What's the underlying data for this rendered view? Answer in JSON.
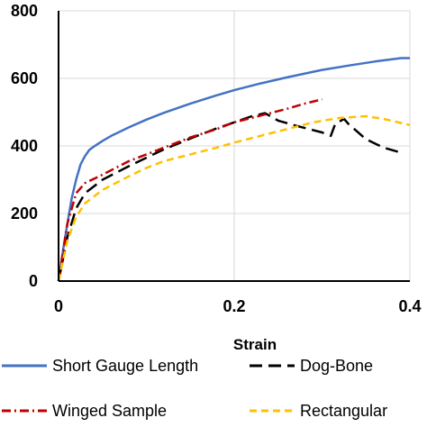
{
  "chart_data": {
    "type": "line",
    "title": "",
    "xlabel": "Strain",
    "ylabel": "",
    "xlim": [
      0,
      0.4
    ],
    "ylim": [
      0,
      800
    ],
    "x_ticks": [
      "0",
      "0.2",
      "0.4"
    ],
    "y_ticks": [
      "0",
      "200",
      "400",
      "600",
      "800"
    ],
    "grid": true,
    "legend_position": "bottom",
    "series": [
      {
        "name": "Short Gauge Length",
        "color": "#4472c4",
        "dash": "solid",
        "x": [
          0,
          0.005,
          0.01,
          0.015,
          0.02,
          0.025,
          0.03,
          0.035,
          0.04,
          0.05,
          0.06,
          0.08,
          0.1,
          0.12,
          0.15,
          0.18,
          0.2,
          0.23,
          0.26,
          0.3,
          0.33,
          0.36,
          0.39,
          0.4
        ],
        "y": [
          0,
          90,
          170,
          245,
          300,
          345,
          370,
          388,
          398,
          415,
          430,
          455,
          478,
          498,
          525,
          550,
          565,
          585,
          603,
          625,
          638,
          650,
          660,
          660
        ]
      },
      {
        "name": "Dog-Bone",
        "color": "#000000",
        "dash": "long-dash",
        "x": [
          0,
          0.01,
          0.02,
          0.03,
          0.05,
          0.08,
          0.1,
          0.12,
          0.15,
          0.18,
          0.2,
          0.22,
          0.235,
          0.25,
          0.27,
          0.3,
          0.31,
          0.315,
          0.325,
          0.33,
          0.35,
          0.37,
          0.39
        ],
        "y": [
          0,
          130,
          215,
          260,
          300,
          340,
          365,
          390,
          422,
          452,
          470,
          488,
          497,
          475,
          460,
          440,
          430,
          465,
          480,
          465,
          420,
          395,
          380
        ]
      },
      {
        "name": "Winged Sample",
        "color": "#c00000",
        "dash": "dash-dot",
        "x": [
          0,
          0.01,
          0.02,
          0.03,
          0.05,
          0.08,
          0.1,
          0.12,
          0.15,
          0.18,
          0.2,
          0.23,
          0.26,
          0.28,
          0.3
        ],
        "y": [
          0,
          170,
          260,
          290,
          315,
          355,
          375,
          395,
          425,
          450,
          470,
          490,
          510,
          525,
          538
        ]
      },
      {
        "name": "Rectangular",
        "color": "#ffc000",
        "dash": "dash",
        "x": [
          0,
          0.005,
          0.01,
          0.02,
          0.03,
          0.05,
          0.08,
          0.1,
          0.12,
          0.15,
          0.18,
          0.2,
          0.23,
          0.26,
          0.29,
          0.32,
          0.35,
          0.37,
          0.39,
          0.4
        ],
        "y": [
          0,
          60,
          120,
          190,
          230,
          270,
          310,
          335,
          355,
          375,
          395,
          410,
          430,
          450,
          470,
          483,
          488,
          480,
          468,
          462
        ]
      }
    ]
  }
}
